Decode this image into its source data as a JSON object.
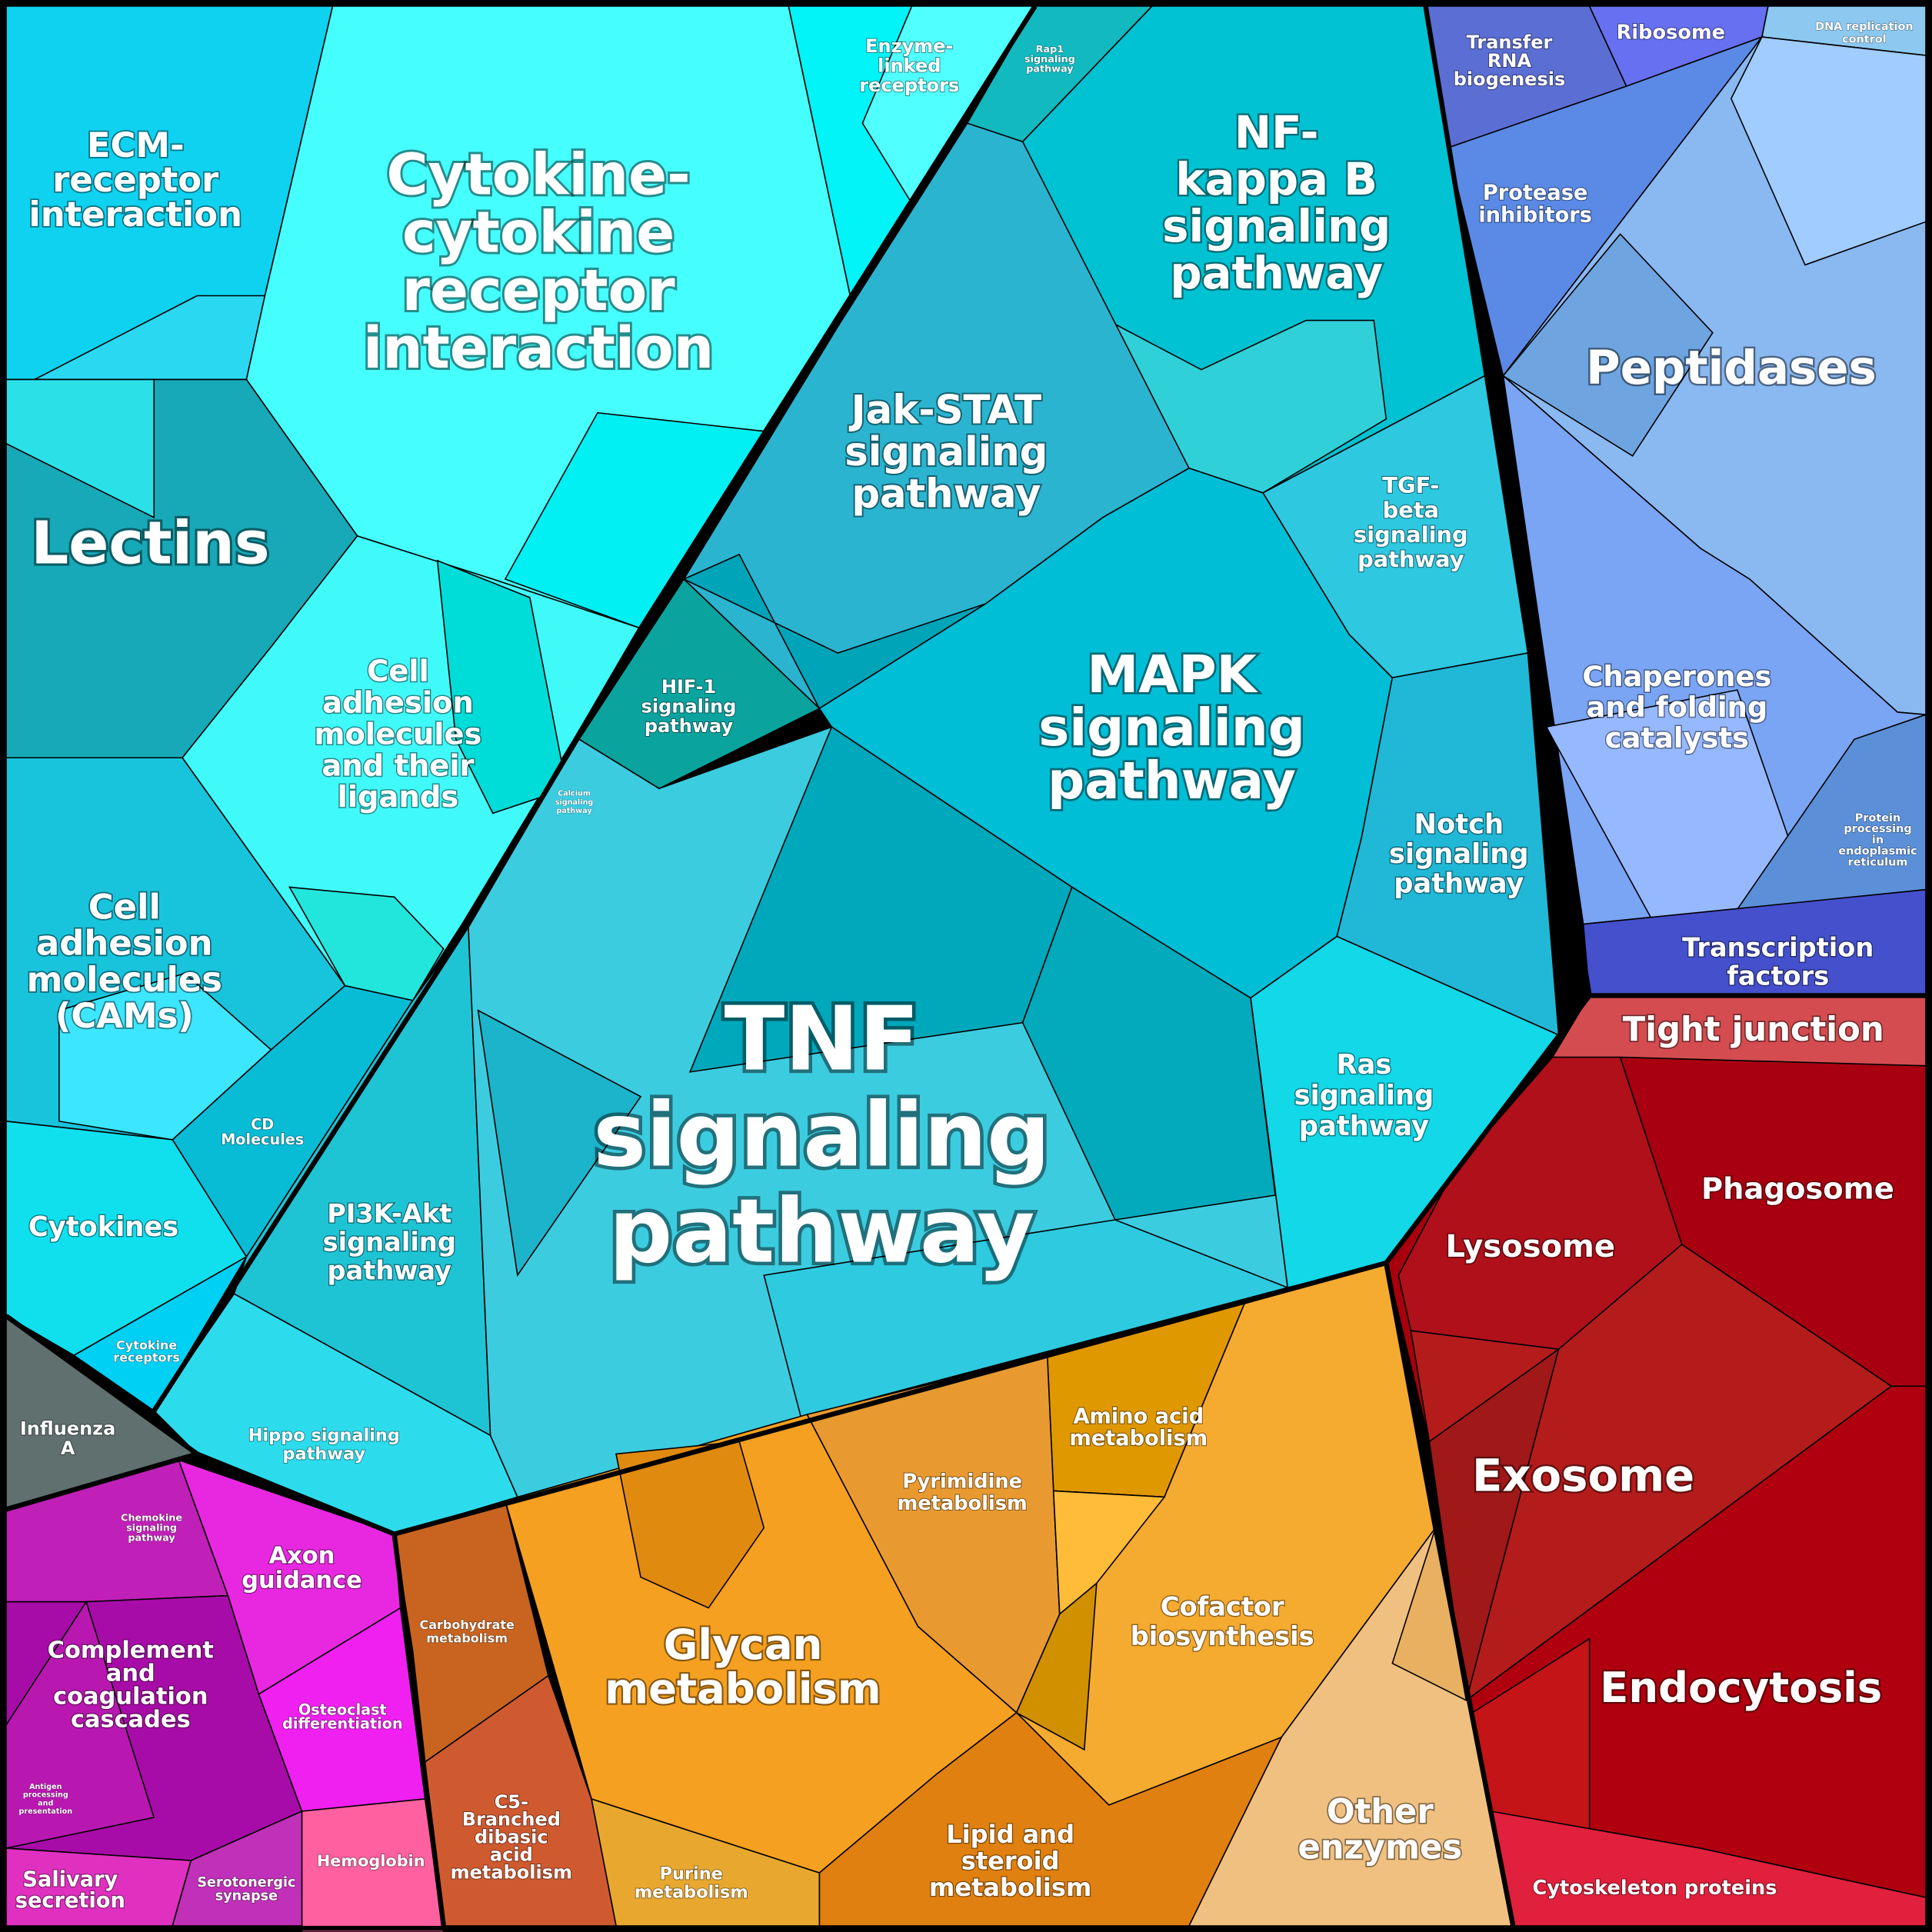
{
  "labels": [
    {
      "lines": [
        "ECM-",
        "receptor",
        "interaction"
      ]
    },
    {
      "lines": [
        "Cytokine-",
        "cytokine",
        "receptor",
        "interaction"
      ]
    },
    {
      "lines": [
        "Enzyme-",
        "linked",
        "receptors"
      ]
    },
    {
      "lines": [
        "Rap1",
        "signaling",
        "pathway"
      ]
    },
    {
      "lines": [
        "NF-",
        "kappa B",
        "signaling",
        "pathway"
      ]
    },
    {
      "lines": [
        "Transfer",
        "RNA",
        "biogenesis"
      ]
    },
    {
      "lines": [
        "Ribosome"
      ]
    },
    {
      "lines": [
        "DNA replication",
        "control"
      ]
    },
    {
      "lines": [
        "Protease",
        "inhibitors"
      ]
    },
    {
      "lines": [
        "Peptidases"
      ]
    },
    {
      "lines": [
        "Lectins"
      ]
    },
    {
      "lines": [
        "Jak-STAT",
        "signaling",
        "pathway"
      ]
    },
    {
      "lines": [
        "TGF-",
        "beta",
        "signaling",
        "pathway"
      ]
    },
    {
      "lines": [
        "HIF-1",
        "signaling",
        "pathway"
      ]
    },
    {
      "lines": [
        "MAPK",
        "signaling",
        "pathway"
      ]
    },
    {
      "lines": [
        "Chaperones",
        "and folding",
        "catalysts"
      ]
    },
    {
      "lines": [
        "Cell",
        "adhesion",
        "molecules",
        "and their",
        "ligands"
      ]
    },
    {
      "lines": [
        "Calcium",
        "signaling",
        "pathway"
      ]
    },
    {
      "lines": [
        "Notch",
        "signaling",
        "pathway"
      ]
    },
    {
      "lines": [
        "Protein",
        "processing",
        "in",
        "endoplasmic",
        "reticulum"
      ]
    },
    {
      "lines": [
        "Transcription",
        "factors"
      ]
    },
    {
      "lines": [
        "Cell",
        "adhesion",
        "molecules",
        "(CAMs)"
      ]
    },
    {
      "lines": [
        "Tight junction"
      ]
    },
    {
      "lines": [
        "TNF",
        "signaling",
        "pathway"
      ]
    },
    {
      "lines": [
        "Ras",
        "signaling",
        "pathway"
      ]
    },
    {
      "lines": [
        "CD",
        "Molecules"
      ]
    },
    {
      "lines": [
        "Phagosome"
      ]
    },
    {
      "lines": [
        "Cytokines"
      ]
    },
    {
      "lines": [
        "Lysosome"
      ]
    },
    {
      "lines": [
        "PI3K-Akt",
        "signaling",
        "pathway"
      ]
    },
    {
      "lines": [
        "Cytokine",
        "receptors"
      ]
    },
    {
      "lines": [
        "Amino acid",
        "metabolism"
      ]
    },
    {
      "lines": [
        "Influenza",
        "A"
      ]
    },
    {
      "lines": [
        "Hippo signaling",
        "pathway"
      ]
    },
    {
      "lines": [
        "Exosome"
      ]
    },
    {
      "lines": [
        "Pyrimidine",
        "metabolism"
      ]
    },
    {
      "lines": [
        "Chemokine",
        "signaling",
        "pathway"
      ]
    },
    {
      "lines": [
        "Axon",
        "guidance"
      ]
    },
    {
      "lines": [
        "Cofactor",
        "biosynthesis"
      ]
    },
    {
      "lines": [
        "Carbohydrate",
        "metabolism"
      ]
    },
    {
      "lines": [
        "Glycan",
        "metabolism"
      ]
    },
    {
      "lines": [
        "Complement",
        "and",
        "coagulation",
        "cascades"
      ]
    },
    {
      "lines": [
        "Endocytosis"
      ]
    },
    {
      "lines": [
        "Osteoclast",
        "differentiation"
      ]
    },
    {
      "lines": [
        "Antigen",
        "processing",
        "and",
        "presentation"
      ]
    },
    {
      "lines": [
        "Other",
        "enzymes"
      ]
    },
    {
      "lines": [
        "C5-",
        "Branched",
        "dibasic",
        "acid",
        "metabolism"
      ]
    },
    {
      "lines": [
        "Lipid and",
        "steroid",
        "metabolism"
      ]
    },
    {
      "lines": [
        "Hemoglobin"
      ]
    },
    {
      "lines": [
        "Purine",
        "metabolism"
      ]
    },
    {
      "lines": [
        "Salivary",
        "secretion"
      ]
    },
    {
      "lines": [
        "Serotonergic",
        "synapse"
      ]
    },
    {
      "lines": [
        "Cytoskeleton proteins"
      ]
    }
  ]
}
